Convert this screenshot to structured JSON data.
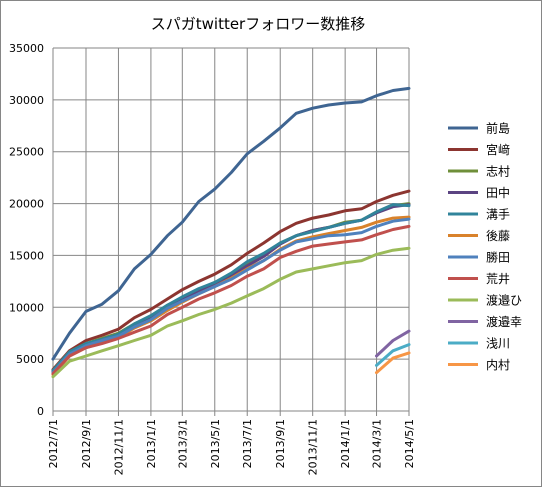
{
  "chart_data": {
    "type": "line",
    "title": "スパガtwitterフォロワー数推移",
    "xlabel": "",
    "ylabel": "",
    "ylim": [
      0,
      35000
    ],
    "yticks": [
      0,
      5000,
      10000,
      15000,
      20000,
      25000,
      30000,
      35000
    ],
    "xlim": [
      "2012/7/1",
      "2014/5/1"
    ],
    "xticks": [
      "2012/7/1",
      "2012/9/1",
      "2012/11/1",
      "2013/1/1",
      "2013/3/1",
      "2013/5/1",
      "2013/7/1",
      "2013/9/1",
      "2013/11/1",
      "2014/1/1",
      "2014/3/1",
      "2014/5/1"
    ],
    "grid": "vertical and horizontal major gridlines",
    "legend": "right",
    "x": [
      "2012/7/1",
      "2012/7/15",
      "2012/8/1",
      "2012/8/15",
      "2012/9/1",
      "2012/9/15",
      "2012/10/1",
      "2012/10/15",
      "2012/11/1",
      "2012/11/15",
      "2012/12/1",
      "2012/12/15",
      "2013/1/1",
      "2013/1/15",
      "2013/2/1",
      "2013/2/15",
      "2013/3/1",
      "2013/3/15",
      "2013/4/1",
      "2013/4/15",
      "2013/5/1",
      "2013/5/15",
      "2013/6/1",
      "2013/6/15",
      "2013/7/1",
      "2013/7/15",
      "2013/8/1",
      "2013/8/15",
      "2013/9/1",
      "2013/9/15",
      "2013/10/1",
      "2013/10/15",
      "2013/11/1",
      "2013/11/15",
      "2013/12/1",
      "2013/12/15",
      "2014/1/1",
      "2014/1/15",
      "2014/2/1",
      "2014/2/15",
      "2014/3/1",
      "2014/3/15",
      "2014/4/1",
      "2014/4/15",
      "2014/5/1"
    ],
    "series": [
      {
        "name": "前島",
        "color": "#3f6592",
        "values": [
          5000,
          null,
          7500,
          null,
          9600,
          null,
          10300,
          null,
          11600,
          null,
          13700,
          null,
          15100,
          null,
          16900,
          null,
          18200,
          null,
          20200,
          null,
          21400,
          null,
          23000,
          null,
          24800,
          null,
          26000,
          null,
          27300,
          null,
          28700,
          null,
          29200,
          null,
          29500,
          null,
          29700,
          null,
          29800,
          null,
          30400,
          null,
          30900,
          null,
          31100
        ]
      },
      {
        "name": "宮﨑",
        "color": "#8c3530",
        "values": [
          4000,
          null,
          5800,
          null,
          6800,
          null,
          7300,
          null,
          7900,
          null,
          9000,
          null,
          9800,
          null,
          10800,
          null,
          11700,
          null,
          12500,
          null,
          13200,
          null,
          14100,
          null,
          15200,
          null,
          16200,
          null,
          17300,
          null,
          18100,
          null,
          18600,
          null,
          18900,
          null,
          19300,
          null,
          19500,
          null,
          20200,
          null,
          20800,
          null,
          21200
        ]
      },
      {
        "name": "志村",
        "color": "#6f8f3a",
        "values": [
          3900,
          null,
          5700,
          null,
          6500,
          null,
          7000,
          null,
          7500,
          null,
          8400,
          null,
          9100,
          null,
          10200,
          null,
          10900,
          null,
          11700,
          null,
          12400,
          null,
          13100,
          null,
          14100,
          null,
          15000,
          null,
          16200,
          null,
          16900,
          null,
          17400,
          null,
          17700,
          null,
          18200,
          null,
          18400,
          null,
          19200,
          null,
          19800,
          null,
          20000
        ]
      },
      {
        "name": "田中",
        "color": "#5b4482",
        "values": [
          3800,
          null,
          5600,
          null,
          6400,
          null,
          6900,
          null,
          7400,
          null,
          8300,
          null,
          9000,
          null,
          10100,
          null,
          10800,
          null,
          11600,
          null,
          12300,
          null,
          13000,
          null,
          14000,
          null,
          14900,
          null,
          16100,
          null,
          16900,
          null,
          17400,
          null,
          17700,
          null,
          18100,
          null,
          18400,
          null,
          19100,
          null,
          19700,
          null,
          19900
        ]
      },
      {
        "name": "溝手",
        "color": "#31849b",
        "values": [
          3900,
          null,
          5700,
          null,
          6500,
          null,
          6900,
          null,
          7400,
          null,
          8400,
          null,
          9200,
          null,
          10200,
          null,
          11000,
          null,
          11800,
          null,
          12400,
          null,
          13300,
          null,
          14400,
          null,
          15200,
          null,
          16200,
          null,
          16900,
          null,
          17300,
          null,
          17700,
          null,
          18100,
          null,
          18400,
          null,
          19200,
          null,
          19900,
          null,
          19800
        ]
      },
      {
        "name": "後藤",
        "color": "#d9822b",
        "values": [
          3500,
          null,
          5300,
          null,
          6100,
          null,
          6600,
          null,
          7100,
          null,
          8000,
          null,
          8700,
          null,
          9700,
          null,
          10500,
          null,
          11300,
          null,
          12000,
          null,
          12800,
          null,
          13700,
          null,
          14500,
          null,
          15600,
          null,
          16400,
          null,
          16800,
          null,
          17100,
          null,
          17400,
          null,
          17700,
          null,
          18200,
          null,
          18600,
          null,
          18700
        ]
      },
      {
        "name": "勝田",
        "color": "#4f81bd",
        "values": [
          3700,
          null,
          5500,
          null,
          6300,
          null,
          6800,
          null,
          7200,
          null,
          8100,
          null,
          8800,
          null,
          9900,
          null,
          10600,
          null,
          11300,
          null,
          12000,
          null,
          12700,
          null,
          13600,
          null,
          14500,
          null,
          15500,
          null,
          16300,
          null,
          16600,
          null,
          16900,
          null,
          17000,
          null,
          17200,
          null,
          17800,
          null,
          18300,
          null,
          18500
        ]
      },
      {
        "name": "荒井",
        "color": "#c0504d",
        "values": [
          3600,
          null,
          5300,
          null,
          6100,
          null,
          6500,
          null,
          7000,
          null,
          7600,
          null,
          8200,
          null,
          9300,
          null,
          10000,
          null,
          10800,
          null,
          11400,
          null,
          12100,
          null,
          13000,
          null,
          13700,
          null,
          14800,
          null,
          15400,
          null,
          15900,
          null,
          16100,
          null,
          16300,
          null,
          16500,
          null,
          17000,
          null,
          17500,
          null,
          17800
        ]
      },
      {
        "name": "渡邉ひ",
        "color": "#9bbb59",
        "values": [
          3300,
          null,
          4800,
          null,
          5300,
          null,
          5800,
          null,
          6300,
          null,
          6800,
          null,
          7300,
          null,
          8200,
          null,
          8700,
          null,
          9300,
          null,
          9800,
          null,
          10400,
          null,
          11100,
          null,
          11800,
          null,
          12700,
          null,
          13400,
          null,
          13700,
          null,
          14000,
          null,
          14300,
          null,
          14500,
          null,
          15100,
          null,
          15500,
          null,
          15700
        ]
      },
      {
        "name": "渡邉幸",
        "color": "#8064a2",
        "values": [
          null,
          null,
          null,
          null,
          null,
          null,
          null,
          null,
          null,
          null,
          null,
          null,
          null,
          null,
          null,
          null,
          null,
          null,
          null,
          null,
          null,
          null,
          null,
          null,
          null,
          null,
          null,
          null,
          null,
          null,
          null,
          null,
          null,
          null,
          null,
          null,
          null,
          null,
          null,
          null,
          5300,
          null,
          6800,
          null,
          7700
        ]
      },
      {
        "name": "浅川",
        "color": "#4bacc6",
        "values": [
          null,
          null,
          null,
          null,
          null,
          null,
          null,
          null,
          null,
          null,
          null,
          null,
          null,
          null,
          null,
          null,
          null,
          null,
          null,
          null,
          null,
          null,
          null,
          null,
          null,
          null,
          null,
          null,
          null,
          null,
          null,
          null,
          null,
          null,
          null,
          null,
          null,
          null,
          null,
          null,
          4400,
          null,
          5800,
          null,
          6400
        ]
      },
      {
        "name": "内村",
        "color": "#f79646",
        "values": [
          null,
          null,
          null,
          null,
          null,
          null,
          null,
          null,
          null,
          null,
          null,
          null,
          null,
          null,
          null,
          null,
          null,
          null,
          null,
          null,
          null,
          null,
          null,
          null,
          null,
          null,
          null,
          null,
          null,
          null,
          null,
          null,
          null,
          null,
          null,
          null,
          null,
          null,
          null,
          null,
          3700,
          null,
          5100,
          null,
          5600
        ]
      }
    ]
  }
}
